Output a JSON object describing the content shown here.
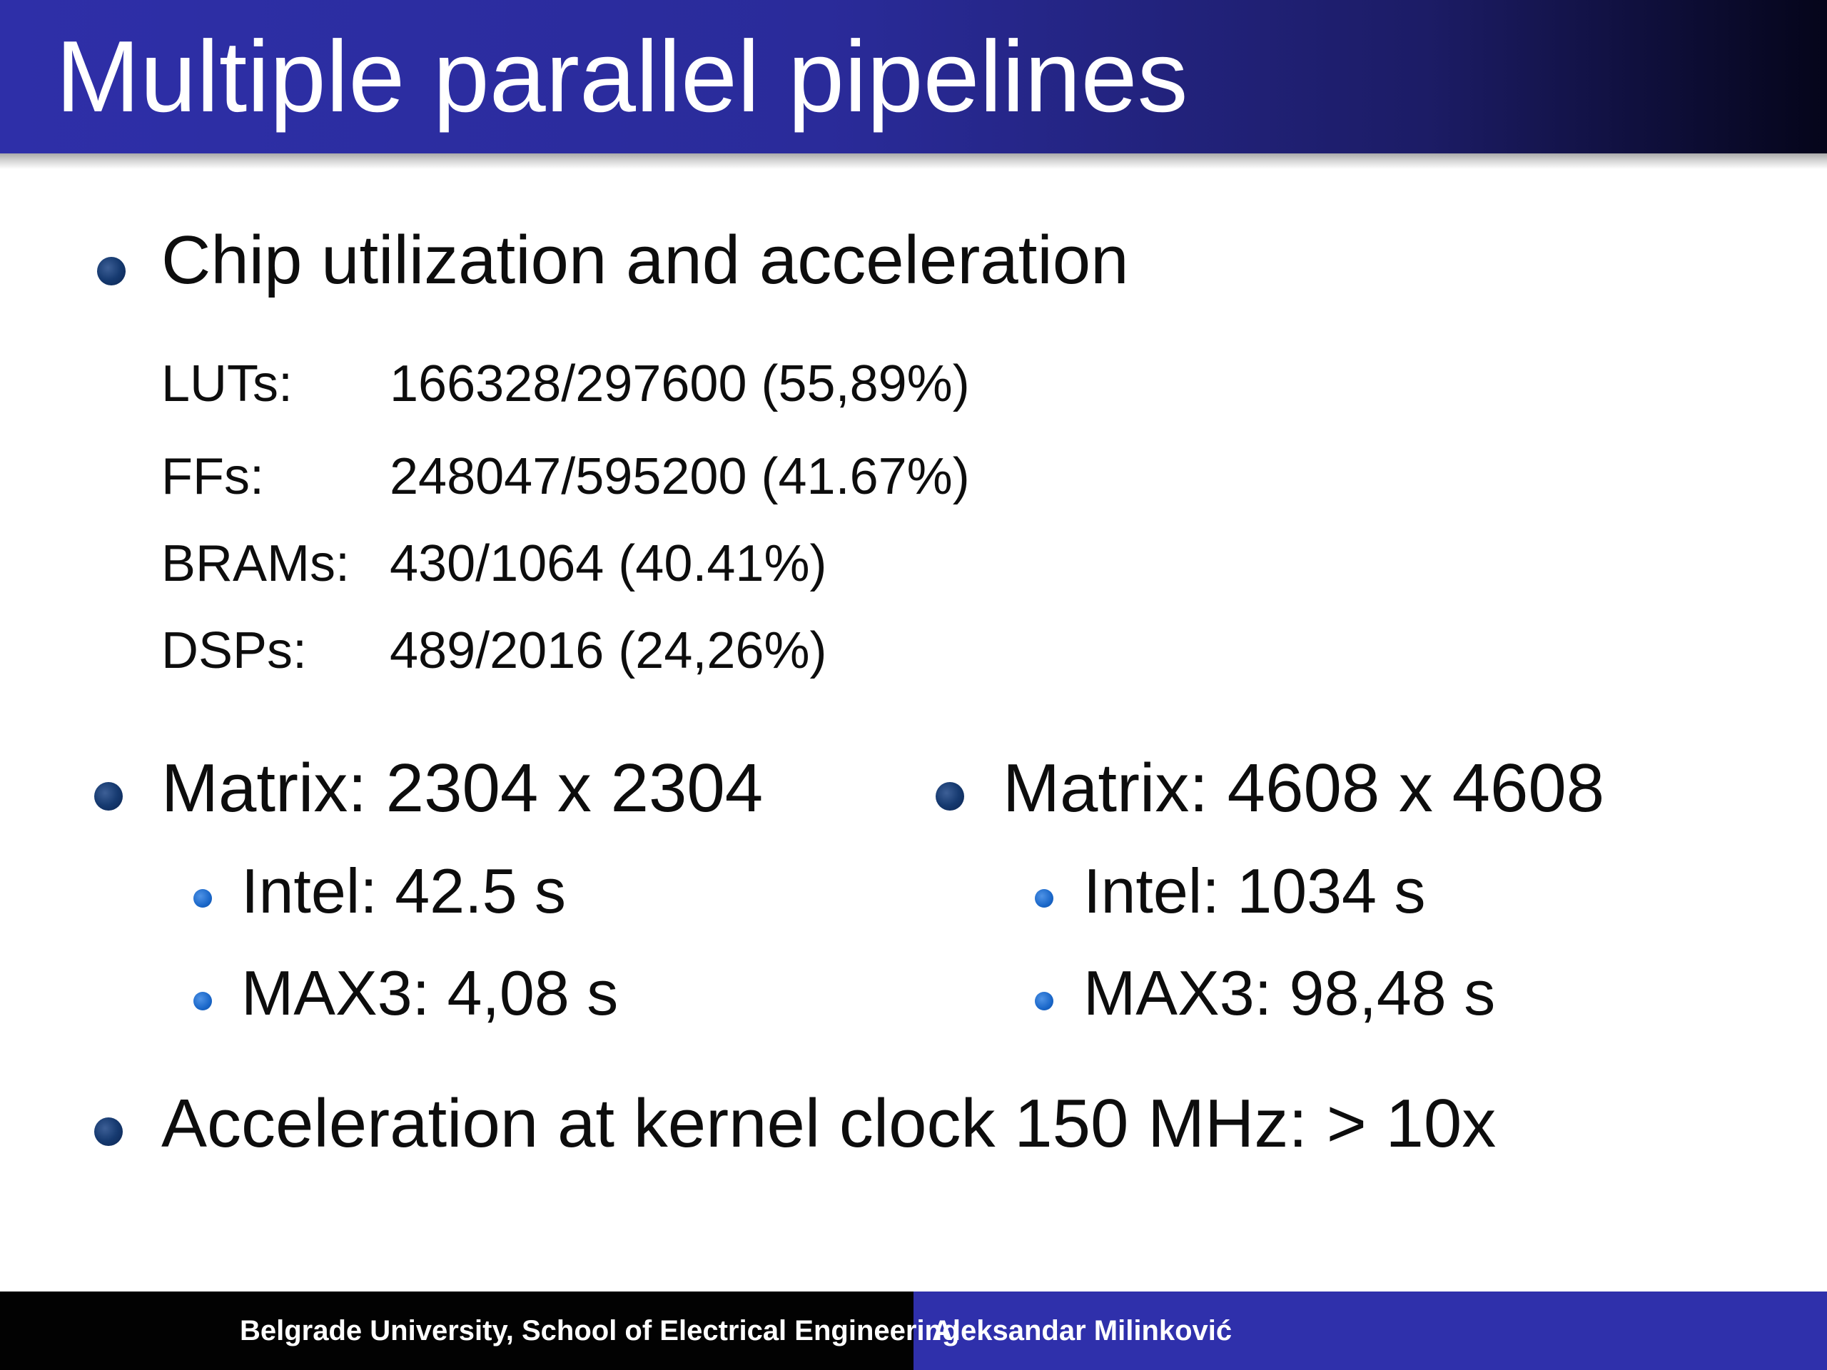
{
  "slide": {
    "title": "Multiple parallel pipelines",
    "section1": {
      "heading": "Chip utilization and acceleration",
      "stats": [
        {
          "label": "LUTs:",
          "value": "166328/297600 (55,89%)"
        },
        {
          "label": "FFs:",
          "value": "248047/595200 (41.67%)"
        },
        {
          "label": "BRAMs:",
          "value": "430/1064 (40.41%)"
        },
        {
          "label": "DSPs:",
          "value": "489/2016 (24,26%)"
        }
      ]
    },
    "matrix_left": {
      "heading": "Matrix: 2304 x 2304",
      "items": [
        "Intel: 42.5 s",
        "MAX3: 4,08 s"
      ]
    },
    "matrix_right": {
      "heading": "Matrix: 4608 x 4608",
      "items": [
        "Intel: 1034 s",
        "MAX3: 98,48 s"
      ]
    },
    "acceleration": "Acceleration at kernel clock 150 MHz: > 10x"
  },
  "footer": {
    "institution": "Belgrade University, School of Electrical Engineering",
    "author": "Aleksandar Milinković"
  },
  "colors": {
    "title_bar": "#2e2fa8",
    "bullet": "#163a70",
    "sub_bullet": "#1a67c9",
    "footer_dark": "#020202",
    "footer_accent": "#2f30ab"
  }
}
